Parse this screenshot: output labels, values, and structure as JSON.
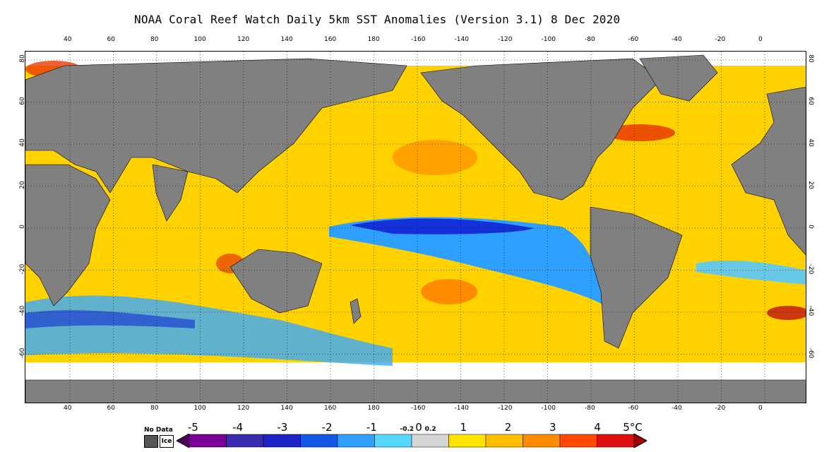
{
  "title": "NOAA Coral Reef Watch Daily 5km SST Anomalies (Version 3.1)  8 Dec 2020",
  "map": {
    "longitude_ticks": [
      "40",
      "60",
      "80",
      "100",
      "120",
      "140",
      "160",
      "180",
      "-160",
      "-140",
      "-120",
      "-100",
      "-80",
      "-60",
      "-40",
      "-20",
      "0"
    ],
    "latitude_ticks": [
      "80",
      "60",
      "40",
      "20",
      "0",
      "-20",
      "-40",
      "-60"
    ],
    "land_color": "#808080",
    "ice_color": "#ffffff",
    "grid_style": "dotted"
  },
  "legend": {
    "no_data_label": "No Data",
    "no_data_color": "#555555",
    "ice_label": "Ice",
    "ice_color": "#ffffff",
    "labels": [
      "-5",
      "-4",
      "-3",
      "-2",
      "-1",
      "-0.2",
      "0",
      "0.2",
      "1",
      "2",
      "3",
      "4",
      "5°C"
    ],
    "colors": [
      "#4b0059",
      "#7a0099",
      "#3a2bb0",
      "#1c24c8",
      "#1458e6",
      "#2ea0ff",
      "#56d8ff",
      "#d4d4d4",
      "#ffe400",
      "#ffbf00",
      "#ff8a00",
      "#ff4a00",
      "#e01010",
      "#a00000"
    ]
  }
}
